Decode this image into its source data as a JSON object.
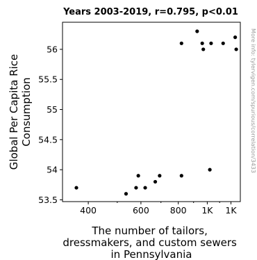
{
  "chart_data": {
    "type": "scatter",
    "title": "Years 2003-2019, r=0.795, p<0.01",
    "xlabel": [
      "The number of tailors,",
      "dressmakers, and custom sewers",
      "in Pennsylvania"
    ],
    "ylabel": [
      "Global Per Capita Rice",
      "Consumption"
    ],
    "side_note": "More info: tylervigen.com/spurious/correlation/3433",
    "x_scale": "log",
    "xlim": [
      328,
      1290
    ],
    "ylim": [
      53.47,
      56.45
    ],
    "x_ticks": [
      {
        "value": 400,
        "label": "400"
      },
      {
        "value": 500,
        "label": "500"
      },
      {
        "value": 600,
        "label": "600"
      },
      {
        "value": 700,
        "label": "700"
      },
      {
        "value": 800,
        "label": "800"
      },
      {
        "value": 900,
        "label": "900"
      },
      {
        "value": 1000,
        "label": "1K"
      },
      {
        "value": 1100,
        "label": "1K"
      },
      {
        "value": 1200,
        "label": "1K"
      }
    ],
    "y_ticks": [
      {
        "value": 53.5,
        "label": "53.5"
      },
      {
        "value": 54.0,
        "label": "54"
      },
      {
        "value": 54.5,
        "label": "54.5"
      },
      {
        "value": 55.0,
        "label": "55"
      },
      {
        "value": 55.5,
        "label": "55.5"
      },
      {
        "value": 56.0,
        "label": "56"
      }
    ],
    "points": [
      {
        "x": 365,
        "y": 53.7
      },
      {
        "x": 535,
        "y": 53.6
      },
      {
        "x": 578,
        "y": 53.7
      },
      {
        "x": 588,
        "y": 53.9
      },
      {
        "x": 620,
        "y": 53.7
      },
      {
        "x": 670,
        "y": 53.8
      },
      {
        "x": 693,
        "y": 53.9
      },
      {
        "x": 820,
        "y": 53.9
      },
      {
        "x": 820,
        "y": 56.1
      },
      {
        "x": 925,
        "y": 56.3
      },
      {
        "x": 962,
        "y": 56.1
      },
      {
        "x": 970,
        "y": 56.0
      },
      {
        "x": 1020,
        "y": 54.0
      },
      {
        "x": 1030,
        "y": 56.1
      },
      {
        "x": 1130,
        "y": 56.1
      },
      {
        "x": 1240,
        "y": 56.2
      },
      {
        "x": 1250,
        "y": 56.0
      }
    ],
    "grid": false,
    "legend": "none",
    "marker_color": "#000000"
  }
}
